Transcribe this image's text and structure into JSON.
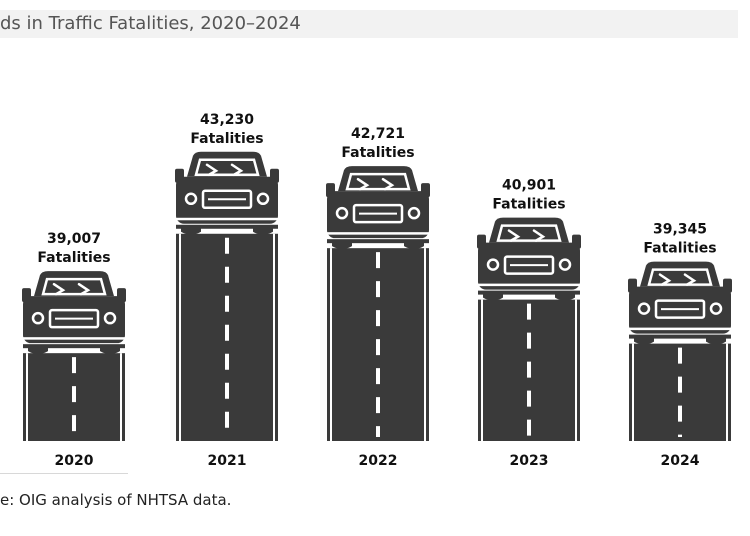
{
  "chart_data": {
    "type": "bar",
    "title": "ds in Traffic Fatalities, 2020–2024",
    "categories": [
      "2020",
      "2021",
      "2022",
      "2023",
      "2024"
    ],
    "values": [
      39007,
      43230,
      42721,
      40901,
      39345
    ],
    "value_labels": [
      "39,007",
      "43,230",
      "42,721",
      "40,901",
      "39,345"
    ],
    "unit_label": "Fatalities",
    "source": "e: OIG analysis of NHTSA data.",
    "ylim": [
      33000,
      44000
    ],
    "colors": {
      "road": "#3a3a3a",
      "road_edge": "#ffffff",
      "lane": "#ffffff",
      "car": "#3a3a3a",
      "car_detail": "#ffffff"
    }
  }
}
